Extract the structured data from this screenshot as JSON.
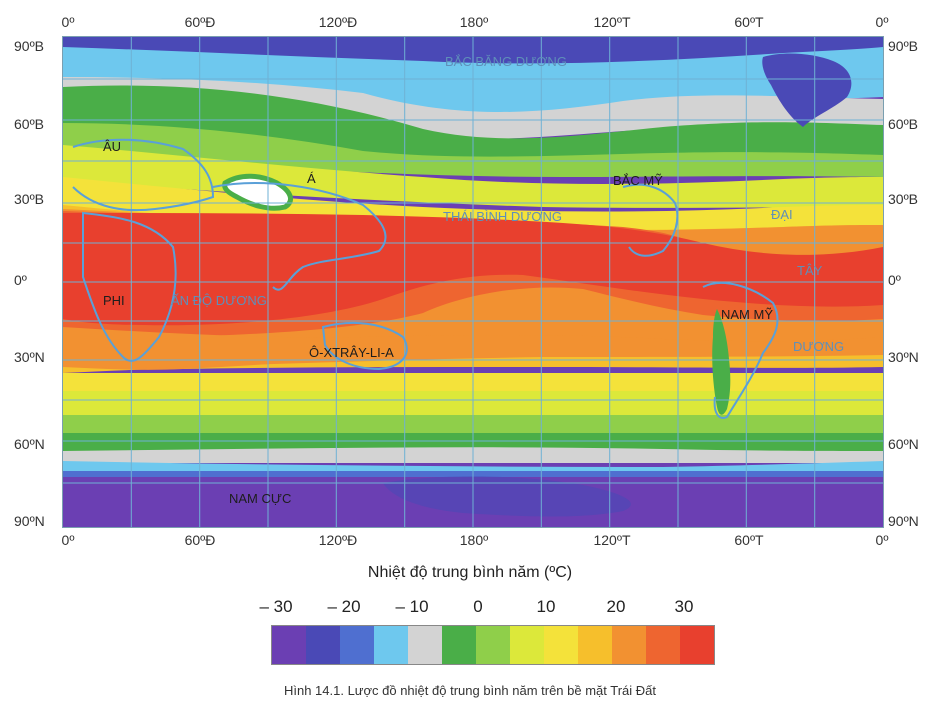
{
  "map": {
    "top_longitudes": [
      "0º",
      "60ºĐ",
      "120ºĐ",
      "180º",
      "120ºT",
      "60ºT",
      "0º"
    ],
    "bottom_longitudes": [
      "0º",
      "60ºĐ",
      "120ºĐ",
      "180º",
      "120ºT",
      "60ºT",
      "0º"
    ],
    "left_latitudes": [
      "90ºB",
      "60ºB",
      "30ºB",
      "0º",
      "30ºN",
      "60ºN",
      "90ºN"
    ],
    "right_latitudes": [
      "90ºB",
      "60ºB",
      "30ºB",
      "0º",
      "30ºN",
      "60ºN",
      "90ºN"
    ],
    "regions": {
      "arctic": "BẮC BĂNG DƯƠNG",
      "europe": "ÂU",
      "asia": "Á",
      "north_america": "BẮC MỸ",
      "pacific": "THÁI BÌNH DƯƠNG",
      "atlantic_1": "ĐẠI",
      "atlantic_2": "TÂY",
      "atlantic_3": "DƯƠNG",
      "africa": "PHI",
      "indian": "ẤN ĐỘ DƯƠNG",
      "south_america": "NAM MỸ",
      "australia": "Ô-XTRÂY-LI-A",
      "antarctica": "NAM CỰC"
    }
  },
  "legend": {
    "title": "Nhiệt độ trung bình năm (ºC)",
    "ticks": [
      "– 30",
      "– 20",
      "– 10",
      "0",
      "10",
      "20",
      "30"
    ],
    "colors": [
      "#6b3fb3",
      "#4a49b6",
      "#4f6fd0",
      "#6ec8ee",
      "#d3d3d3",
      "#4aae48",
      "#8fcf4a",
      "#dce83a",
      "#f4e23a",
      "#f6bf2c",
      "#f29131",
      "#ee6530",
      "#e8402e"
    ]
  },
  "caption": "Hình 14.1. Lược đồ nhiệt độ trung bình năm trên bề mặt Trái Đất"
}
